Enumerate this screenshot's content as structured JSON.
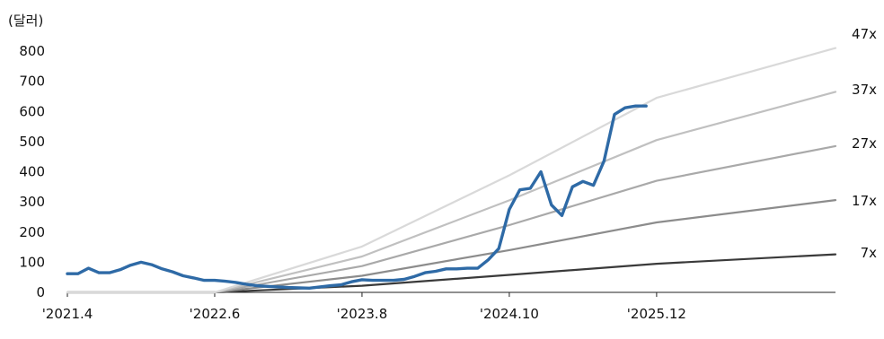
{
  "chart_data": {
    "type": "line",
    "ylabel": "(달러)",
    "ylim": [
      0,
      800
    ],
    "yticks": [
      0,
      100,
      200,
      300,
      400,
      500,
      600,
      700,
      800
    ],
    "x_tick_labels": [
      "'2021.4",
      "'2022.6",
      "'2023.8",
      "'2024.10",
      "'2025.12"
    ],
    "x_tick_dates": [
      "2021-04",
      "2022-06",
      "2023-08",
      "2024-10",
      "2025-12"
    ],
    "x_range": [
      "2021-04",
      "2027-05"
    ],
    "legend": "none (band lines labelled at right end)",
    "grid": false,
    "series": [
      {
        "name": "7x",
        "color": "#3a3a3a",
        "x": [
          "2021-04",
          "2022-06",
          "2023-08",
          "2024-10",
          "2025-12",
          "2027-05"
        ],
        "values": [
          0,
          0,
          22,
          58,
          95,
          126
        ]
      },
      {
        "name": "17x",
        "color": "#8c8c8c",
        "x": [
          "2021-04",
          "2022-06",
          "2023-08",
          "2024-10",
          "2025-12",
          "2027-05"
        ],
        "values": [
          0,
          0,
          55,
          140,
          232,
          306
        ]
      },
      {
        "name": "27x",
        "color": "#a9a9a9",
        "x": [
          "2021-04",
          "2022-06",
          "2023-08",
          "2024-10",
          "2025-12",
          "2027-05"
        ],
        "values": [
          0,
          0,
          87,
          223,
          370,
          485
        ]
      },
      {
        "name": "37x",
        "color": "#c0c0c0",
        "x": [
          "2021-04",
          "2022-06",
          "2023-08",
          "2024-10",
          "2025-12",
          "2027-05"
        ],
        "values": [
          0,
          0,
          119,
          305,
          505,
          665
        ]
      },
      {
        "name": "47x",
        "color": "#d9d9d9",
        "x": [
          "2021-04",
          "2022-06",
          "2023-08",
          "2024-10",
          "2025-12",
          "2027-05"
        ],
        "values": [
          0,
          0,
          152,
          388,
          645,
          810
        ]
      },
      {
        "name": "",
        "color": "#2e6aa6",
        "x": [
          "2021-04",
          "2021-05",
          "2021-06",
          "2021-07",
          "2021-08",
          "2021-09",
          "2021-10",
          "2021-11",
          "2021-12",
          "2022-01",
          "2022-02",
          "2022-03",
          "2022-04",
          "2022-05",
          "2022-06",
          "2022-07",
          "2022-08",
          "2022-09",
          "2022-10",
          "2022-11",
          "2022-12",
          "2023-01",
          "2023-02",
          "2023-03",
          "2023-04",
          "2023-05",
          "2023-06",
          "2023-07",
          "2023-08",
          "2023-09",
          "2023-10",
          "2023-11",
          "2023-12",
          "2024-01",
          "2024-02",
          "2024-03",
          "2024-04",
          "2024-05",
          "2024-06",
          "2024-07",
          "2024-08",
          "2024-09",
          "2024-10",
          "2024-11",
          "2024-12",
          "2025-01",
          "2025-02",
          "2025-03",
          "2025-04",
          "2025-05",
          "2025-06",
          "2025-07",
          "2025-08",
          "2025-09",
          "2025-10",
          "2025-11"
        ],
        "values": [
          62,
          62,
          80,
          65,
          65,
          75,
          90,
          100,
          92,
          78,
          68,
          55,
          48,
          40,
          40,
          37,
          33,
          27,
          22,
          20,
          18,
          16,
          15,
          14,
          18,
          22,
          25,
          35,
          42,
          40,
          40,
          40,
          43,
          53,
          65,
          70,
          78,
          78,
          80,
          80,
          108,
          145,
          275,
          340,
          345,
          400,
          290,
          255,
          350,
          368,
          355,
          435,
          590,
          612,
          618,
          618
        ]
      }
    ]
  }
}
